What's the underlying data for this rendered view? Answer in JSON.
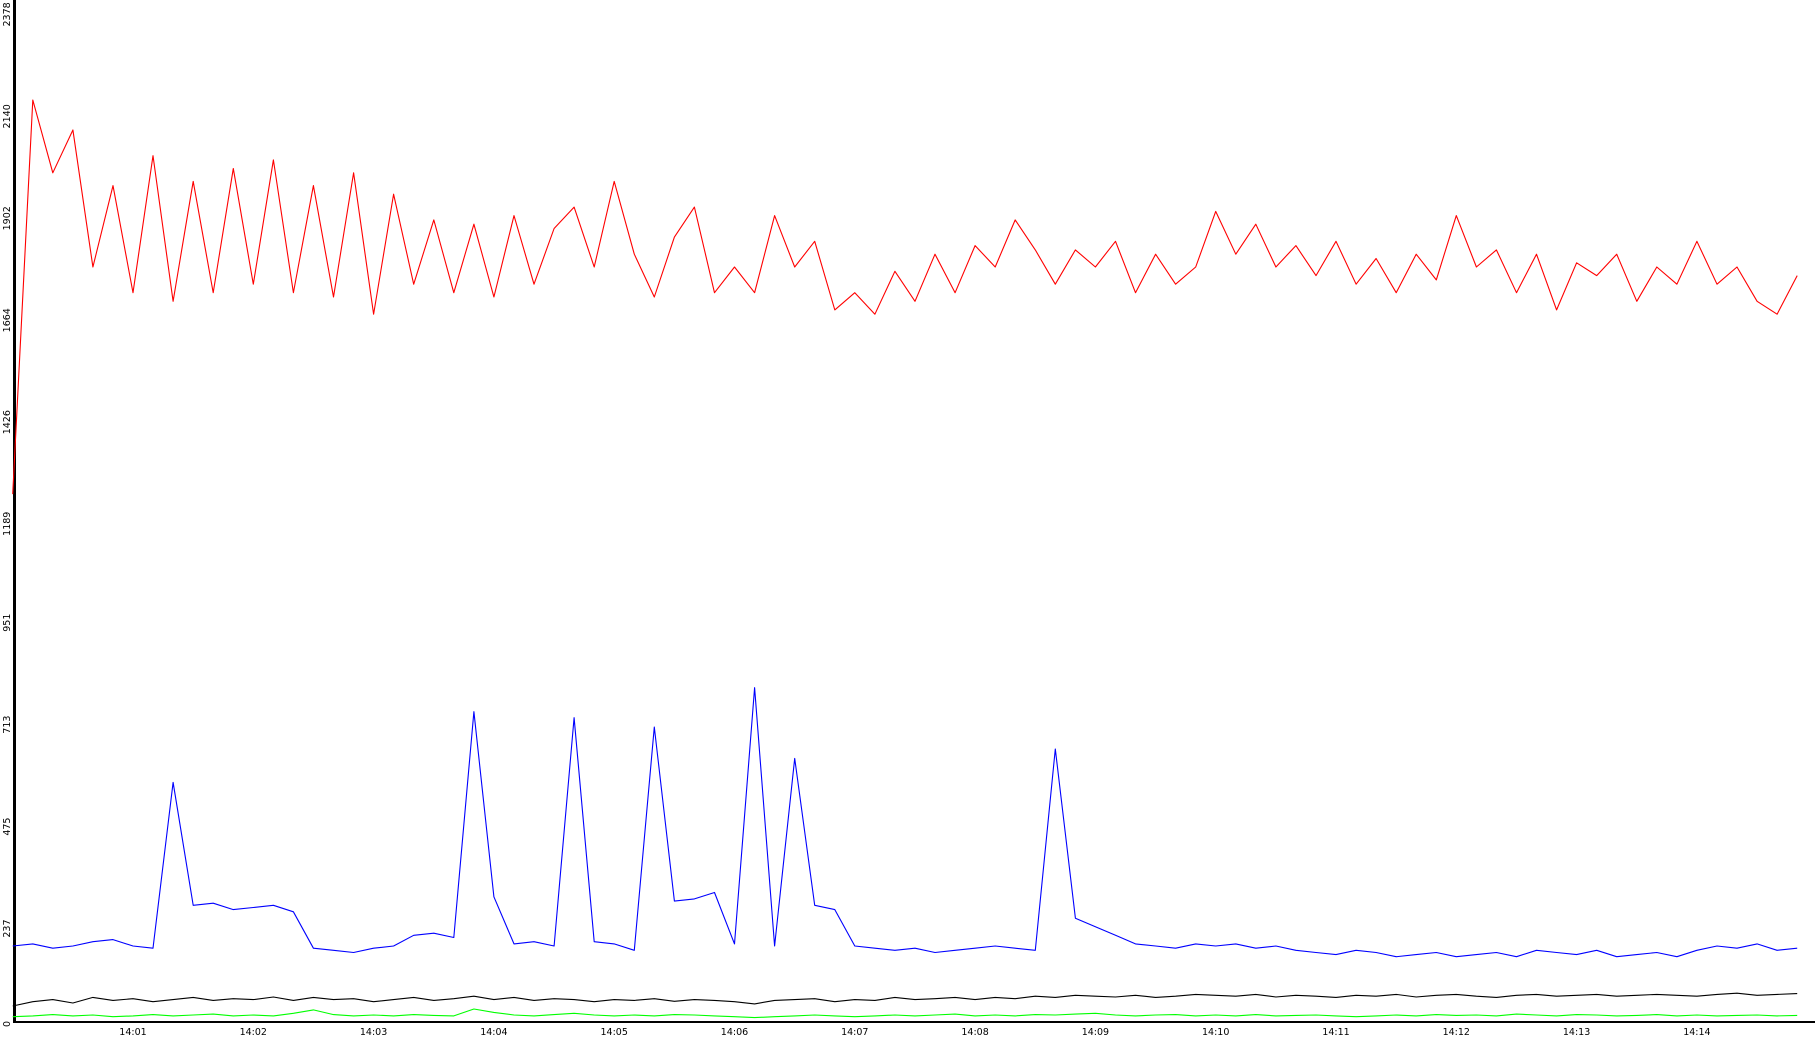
{
  "chart_data": {
    "type": "line",
    "categories": [
      null,
      null,
      null,
      null,
      null,
      null,
      "14:01",
      null,
      null,
      null,
      null,
      null,
      "14:02",
      null,
      null,
      null,
      null,
      null,
      "14:03",
      null,
      null,
      null,
      null,
      null,
      "14:04",
      null,
      null,
      null,
      null,
      null,
      "14:05",
      null,
      null,
      null,
      null,
      null,
      "14:06",
      null,
      null,
      null,
      null,
      null,
      "14:07",
      null,
      null,
      null,
      null,
      null,
      "14:08",
      null,
      null,
      null,
      null,
      null,
      "14:09",
      null,
      null,
      null,
      null,
      null,
      "14:10",
      null,
      null,
      null,
      null,
      null,
      "14:11",
      null,
      null,
      null,
      null,
      null,
      "14:12",
      null,
      null,
      null,
      null,
      null,
      "14:13",
      null,
      null,
      null,
      null,
      null,
      "14:14",
      null,
      null,
      null,
      null,
      null
    ],
    "ylim": [
      0,
      2378
    ],
    "yticks": [
      0,
      237,
      475,
      713,
      951,
      1189,
      1426,
      1664,
      1902,
      2140,
      2378
    ],
    "series": [
      {
        "color": "#ff0000",
        "values": [
          1230,
          2150,
          1980,
          2080,
          1760,
          1950,
          1700,
          2020,
          1680,
          1960,
          1700,
          1990,
          1720,
          2010,
          1700,
          1950,
          1690,
          1980,
          1650,
          1930,
          1720,
          1870,
          1700,
          1860,
          1690,
          1880,
          1720,
          1850,
          1900,
          1760,
          1960,
          1790,
          1690,
          1830,
          1900,
          1700,
          1760,
          1700,
          1880,
          1760,
          1820,
          1660,
          1700,
          1650,
          1750,
          1680,
          1790,
          1700,
          1810,
          1760,
          1870,
          1800,
          1720,
          1800,
          1760,
          1820,
          1700,
          1790,
          1720,
          1760,
          1890,
          1790,
          1860,
          1760,
          1810,
          1740,
          1820,
          1720,
          1780,
          1700,
          1790,
          1730,
          1880,
          1760,
          1800,
          1700,
          1790,
          1660,
          1770,
          1740,
          1790,
          1680,
          1760,
          1720,
          1820,
          1720,
          1760,
          1680,
          1650,
          1740
        ]
      },
      {
        "color": "#0000ff",
        "values": [
          175,
          180,
          170,
          175,
          185,
          190,
          175,
          170,
          557,
          270,
          275,
          260,
          265,
          270,
          255,
          170,
          165,
          160,
          170,
          175,
          200,
          205,
          195,
          722,
          290,
          180,
          185,
          175,
          708,
          185,
          180,
          165,
          686,
          280,
          285,
          300,
          180,
          778,
          175,
          613,
          270,
          260,
          175,
          170,
          165,
          170,
          160,
          165,
          170,
          175,
          170,
          165,
          635,
          240,
          220,
          200,
          180,
          175,
          170,
          180,
          175,
          180,
          170,
          175,
          165,
          160,
          155,
          165,
          160,
          150,
          155,
          160,
          150,
          155,
          160,
          150,
          165,
          160,
          155,
          165,
          150,
          155,
          160,
          150,
          165,
          175,
          170,
          180,
          165,
          170
        ]
      },
      {
        "color": "#000000",
        "values": [
          35,
          45,
          50,
          42,
          55,
          48,
          52,
          45,
          50,
          55,
          48,
          52,
          50,
          56,
          48,
          55,
          50,
          52,
          45,
          50,
          55,
          48,
          52,
          58,
          50,
          55,
          48,
          52,
          50,
          45,
          50,
          48,
          52,
          46,
          50,
          48,
          45,
          40,
          48,
          50,
          52,
          45,
          50,
          48,
          55,
          50,
          52,
          55,
          50,
          55,
          52,
          58,
          55,
          60,
          58,
          56,
          60,
          55,
          58,
          62,
          60,
          58,
          62,
          56,
          60,
          58,
          55,
          60,
          58,
          62,
          56,
          60,
          62,
          58,
          55,
          60,
          62,
          58,
          60,
          62,
          58,
          60,
          62,
          60,
          58,
          62,
          65,
          60,
          62,
          64
        ]
      },
      {
        "color": "#00ff00",
        "values": [
          10,
          12,
          15,
          12,
          14,
          10,
          12,
          15,
          12,
          14,
          16,
          12,
          14,
          12,
          18,
          26,
          15,
          12,
          14,
          12,
          15,
          13,
          12,
          28,
          20,
          14,
          12,
          15,
          18,
          14,
          12,
          14,
          12,
          15,
          14,
          12,
          10,
          8,
          10,
          12,
          14,
          12,
          10,
          12,
          14,
          12,
          14,
          16,
          12,
          14,
          12,
          15,
          14,
          16,
          18,
          14,
          12,
          14,
          15,
          12,
          14,
          12,
          15,
          12,
          13,
          14,
          12,
          10,
          12,
          14,
          12,
          15,
          13,
          14,
          12,
          16,
          14,
          12,
          15,
          14,
          12,
          13,
          15,
          12,
          14,
          12,
          13,
          14,
          12,
          13
        ]
      }
    ]
  }
}
